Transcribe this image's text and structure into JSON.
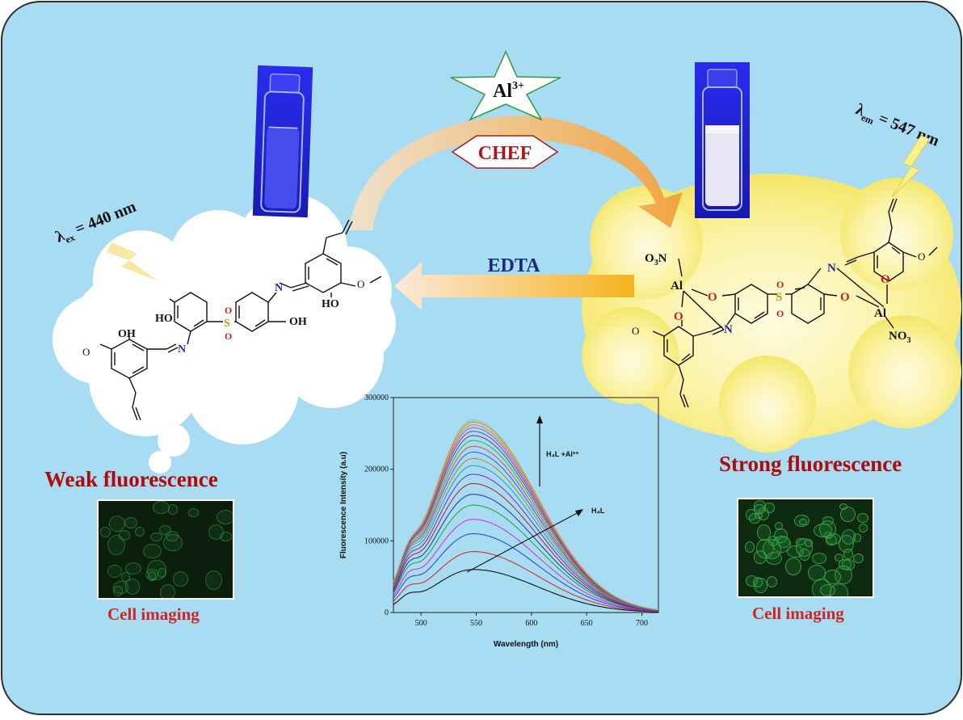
{
  "labels": {
    "al_ion": "Al",
    "al_charge": "3+",
    "chef": "CHEF",
    "edta": "EDTA",
    "lambda_ex_sub": "ex",
    "lambda_ex_value": " = 440 nm",
    "lambda_em_sub": "em",
    "lambda_em_value": " = 547 nm",
    "weak": "Weak fluorescence",
    "strong": "Strong fluorescence",
    "cell_imaging_left": "Cell imaging",
    "cell_imaging_right": "Cell imaging"
  },
  "ligand": {
    "oh": "OH",
    "ho_left": "HO",
    "ho_right": "HO",
    "oh_right": "OH",
    "s": "S",
    "o": "O",
    "n": "N"
  },
  "complex": {
    "o3n": "O",
    "o3n_sub": "3",
    "o3n_n": "N",
    "al": "Al",
    "o": "O",
    "n": "N",
    "s": "S",
    "no3": "NO",
    "no3_sub": "3"
  },
  "colors": {
    "background": "#a8dcf2",
    "title_red": "#b00a0a",
    "edta_blue": "#1a2a7a",
    "cloud_yellow": "#f7f08a",
    "arrow_orange": "#f0a640",
    "vial_uv": "#2a2ae0"
  },
  "chart_data": {
    "type": "line",
    "xlabel": "Wavelength (nm)",
    "ylabel": "Fluorescence Intensity (a.u)",
    "xlim": [
      475,
      715
    ],
    "ylim": [
      0,
      300000
    ],
    "xticks": [
      500,
      550,
      600,
      650,
      700
    ],
    "yticks": [
      0,
      100000,
      200000,
      300000
    ],
    "annotation_up": "H₄L +Al³⁺",
    "annotation_ligand": "H₄L",
    "peak_x": 547,
    "series_peaks": [
      60000,
      85000,
      110000,
      130000,
      150000,
      165000,
      180000,
      193000,
      205000,
      215000,
      224000,
      232000,
      240000,
      247000,
      253000,
      258000,
      262000,
      266000,
      269000
    ],
    "series_colors": [
      "#000000",
      "#d62020",
      "#2040e0",
      "#e020e0",
      "#20a030",
      "#2030a0",
      "#b02020",
      "#8020c0",
      "#20a0a0",
      "#c08020",
      "#2060ff",
      "#ff4040",
      "#20c020",
      "#a020a0",
      "#606060",
      "#c040ff",
      "#ff8000",
      "#b0a000",
      "#b0b0b0"
    ]
  }
}
